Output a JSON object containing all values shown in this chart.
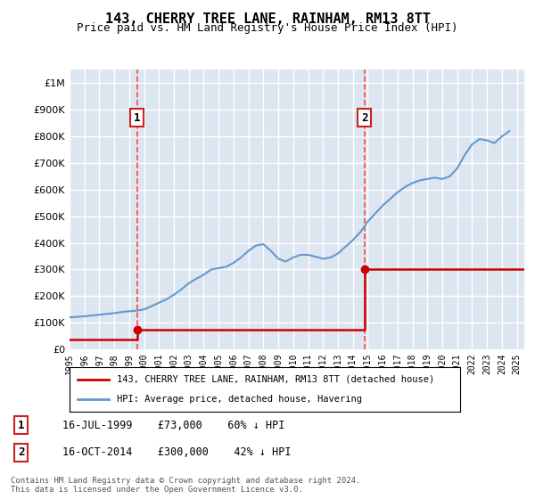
{
  "title": "143, CHERRY TREE LANE, RAINHAM, RM13 8TT",
  "subtitle": "Price paid vs. HM Land Registry's House Price Index (HPI)",
  "legend_line1": "143, CHERRY TREE LANE, RAINHAM, RM13 8TT (detached house)",
  "legend_line2": "HPI: Average price, detached house, Havering",
  "footnote": "Contains HM Land Registry data © Crown copyright and database right 2024.\nThis data is licensed under the Open Government Licence v3.0.",
  "purchase1_date": "16-JUL-1999",
  "purchase1_year": 1999.54,
  "purchase1_price": 73000,
  "purchase1_label": "1",
  "purchase1_note": "16-JUL-1999    £73,000    60% ↓ HPI",
  "purchase2_date": "16-OCT-2014",
  "purchase2_year": 2014.79,
  "purchase2_price": 300000,
  "purchase2_label": "2",
  "purchase2_note": "16-OCT-2014    £300,000    42% ↓ HPI",
  "red_color": "#cc0000",
  "blue_color": "#6699cc",
  "bg_color": "#dce6f1",
  "grid_color": "#ffffff",
  "vline_color": "#ff4444",
  "ylim": [
    0,
    1050000
  ],
  "xlim_start": 1995,
  "xlim_end": 2025.5,
  "hpi_years": [
    1995,
    1995.5,
    1996,
    1996.5,
    1997,
    1997.5,
    1998,
    1998.5,
    1999,
    1999.5,
    2000,
    2000.5,
    2001,
    2001.5,
    2002,
    2002.5,
    2003,
    2003.5,
    2004,
    2004.5,
    2005,
    2005.5,
    2006,
    2006.5,
    2007,
    2007.5,
    2008,
    2008.5,
    2009,
    2009.5,
    2010,
    2010.5,
    2011,
    2011.5,
    2012,
    2012.5,
    2013,
    2013.5,
    2014,
    2014.5,
    2015,
    2015.5,
    2016,
    2016.5,
    2017,
    2017.5,
    2018,
    2018.5,
    2019,
    2019.5,
    2020,
    2020.5,
    2021,
    2021.5,
    2022,
    2022.5,
    2023,
    2023.5,
    2024,
    2024.5
  ],
  "hpi_values": [
    120000,
    122000,
    124000,
    127000,
    130000,
    133000,
    136000,
    140000,
    143000,
    145000,
    150000,
    162000,
    175000,
    188000,
    205000,
    225000,
    248000,
    265000,
    280000,
    300000,
    305000,
    310000,
    325000,
    345000,
    370000,
    390000,
    395000,
    370000,
    340000,
    330000,
    345000,
    355000,
    355000,
    348000,
    340000,
    345000,
    360000,
    385000,
    410000,
    440000,
    480000,
    510000,
    540000,
    565000,
    590000,
    610000,
    625000,
    635000,
    640000,
    645000,
    640000,
    650000,
    680000,
    730000,
    770000,
    790000,
    785000,
    775000,
    800000,
    820000
  ],
  "red_years": [
    1995,
    1999.54,
    1999.54,
    2014.79,
    2014.79,
    2025.5
  ],
  "red_values": [
    36000,
    36000,
    73000,
    73000,
    300000,
    300000
  ]
}
